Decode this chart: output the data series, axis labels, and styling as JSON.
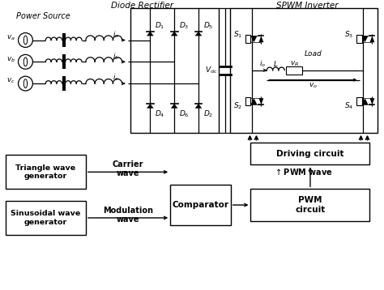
{
  "bg_color": "#ffffff",
  "line_color": "#000000",
  "title_diode": "Diode Rectifier",
  "title_spwm": "SPWM Inverter",
  "title_power": "Power Source",
  "figsize": [
    4.74,
    3.58
  ],
  "dpi": 100
}
